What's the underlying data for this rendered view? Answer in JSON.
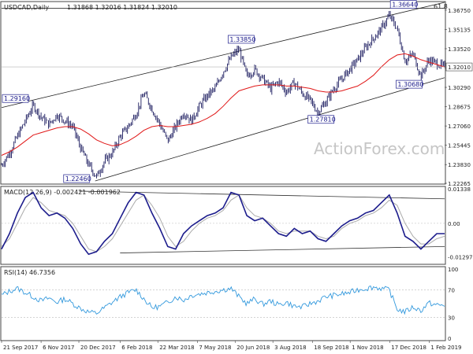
{
  "chart_data": {
    "type": "candlestick",
    "symbol_label": "USDCAD,Daily",
    "ohlc_label": "1.31868 1.32016 1.31824 1.32010",
    "last_price": "1.32010",
    "watermark": "ActionForex.com",
    "top_right_label": "61.8",
    "y_ticks": [
      "1.36750",
      "1.35135",
      "1.33520",
      "1.31905",
      "1.30290",
      "1.28675",
      "1.27060",
      "1.25445",
      "1.23830",
      "1.22265"
    ],
    "x_ticks": [
      "21 Sep 2017",
      "6 Nov 2017",
      "20 Dec 2017",
      "6 Feb 2018",
      "22 Mar 2018",
      "7 May 2018",
      "20 Jun 2018",
      "3 Aug 2018",
      "18 Sep 2018",
      "1 Nov 2018",
      "17 Dec 2018",
      "1 Feb 2019"
    ],
    "ylim": [
      1.22265,
      1.374
    ],
    "price_series": [
      {
        "date": "21 Sep 2017",
        "close": 1.238
      },
      {
        "date": "29 Sep 2017",
        "close": 1.248
      },
      {
        "date": "9 Oct 2017",
        "close": 1.262
      },
      {
        "date": "17 Oct 2017",
        "close": 1.275
      },
      {
        "date": "25 Oct 2017",
        "close": 1.288
      },
      {
        "date": "6 Nov 2017",
        "close": 1.278
      },
      {
        "date": "15 Nov 2017",
        "close": 1.272
      },
      {
        "date": "24 Nov 2017",
        "close": 1.28
      },
      {
        "date": "1 Dec 2017",
        "close": 1.275
      },
      {
        "date": "8 Dec 2017",
        "close": 1.27
      },
      {
        "date": "20 Dec 2017",
        "close": 1.252
      },
      {
        "date": "29 Dec 2017",
        "close": 1.238
      },
      {
        "date": "8 Jan 2018",
        "close": 1.228
      },
      {
        "date": "18 Jan 2018",
        "close": 1.241
      },
      {
        "date": "25 Jan 2018",
        "close": 1.248
      },
      {
        "date": "6 Feb 2018",
        "close": 1.262
      },
      {
        "date": "14 Feb 2018",
        "close": 1.27
      },
      {
        "date": "22 Feb 2018",
        "close": 1.281
      },
      {
        "date": "5 Mar 2018",
        "close": 1.298
      },
      {
        "date": "14 Mar 2018",
        "close": 1.285
      },
      {
        "date": "22 Mar 2018",
        "close": 1.272
      },
      {
        "date": "2 Apr 2018",
        "close": 1.258
      },
      {
        "date": "11 Apr 2018",
        "close": 1.27
      },
      {
        "date": "20 Apr 2018",
        "close": 1.282
      },
      {
        "date": "27 Apr 2018",
        "close": 1.275
      },
      {
        "date": "7 May 2018",
        "close": 1.287
      },
      {
        "date": "17 May 2018",
        "close": 1.296
      },
      {
        "date": "28 May 2018",
        "close": 1.302
      },
      {
        "date": "8 Jun 2018",
        "close": 1.316
      },
      {
        "date": "20 Jun 2018",
        "close": 1.328
      },
      {
        "date": "27 Jun 2018",
        "close": 1.335
      },
      {
        "date": "6 Jul 2018",
        "close": 1.312
      },
      {
        "date": "16 Jul 2018",
        "close": 1.318
      },
      {
        "date": "25 Jul 2018",
        "close": 1.31
      },
      {
        "date": "3 Aug 2018",
        "close": 1.302
      },
      {
        "date": "14 Aug 2018",
        "close": 1.308
      },
      {
        "date": "24 Aug 2018",
        "close": 1.299
      },
      {
        "date": "3 Sep 2018",
        "close": 1.307
      },
      {
        "date": "12 Sep 2018",
        "close": 1.298
      },
      {
        "date": "18 Sep 2018",
        "close": 1.292
      },
      {
        "date": "28 Sep 2018",
        "close": 1.282
      },
      {
        "date": "8 Oct 2018",
        "close": 1.291
      },
      {
        "date": "19 Oct 2018",
        "close": 1.302
      },
      {
        "date": "1 Nov 2018",
        "close": 1.31
      },
      {
        "date": "12 Nov 2018",
        "close": 1.318
      },
      {
        "date": "22 Nov 2018",
        "close": 1.326
      },
      {
        "date": "3 Dec 2018",
        "close": 1.336
      },
      {
        "date": "10 Dec 2018",
        "close": 1.344
      },
      {
        "date": "17 Dec 2018",
        "close": 1.352
      },
      {
        "date": "24 Dec 2018",
        "close": 1.363
      },
      {
        "date": "2 Jan 2019",
        "close": 1.352
      },
      {
        "date": "10 Jan 2019",
        "close": 1.325
      },
      {
        "date": "18 Jan 2019",
        "close": 1.331
      },
      {
        "date": "1 Feb 2019",
        "close": 1.312
      },
      {
        "date": "8 Feb 2019",
        "close": 1.326
      },
      {
        "date": "14 Feb 2019",
        "close": 1.323
      },
      {
        "date": "19 Feb 2019",
        "close": 1.32
      }
    ],
    "ma_series": [
      1.246,
      1.249,
      1.253,
      1.258,
      1.263,
      1.265,
      1.267,
      1.269,
      1.27,
      1.27,
      1.268,
      1.264,
      1.259,
      1.256,
      1.254,
      1.255,
      1.258,
      1.262,
      1.267,
      1.27,
      1.271,
      1.27,
      1.27,
      1.271,
      1.272,
      1.274,
      1.277,
      1.281,
      1.287,
      1.294,
      1.3,
      1.302,
      1.304,
      1.305,
      1.305,
      1.305,
      1.304,
      1.304,
      1.303,
      1.302,
      1.3,
      1.299,
      1.299,
      1.3,
      1.302,
      1.304,
      1.308,
      1.313,
      1.32,
      1.326,
      1.33,
      1.331,
      1.329,
      1.326,
      1.324,
      1.322,
      1.32
    ],
    "annotations": [
      {
        "label": "1.29160",
        "date": "6 Nov 2017",
        "price": 1.2916
      },
      {
        "label": "1.22460",
        "date": "8 Jan 2018",
        "price": 1.2246
      },
      {
        "label": "1.33850",
        "date": "27 Jun 2018",
        "price": 1.3385
      },
      {
        "label": "1.27810",
        "date": "28 Sep 2018",
        "price": 1.2781
      },
      {
        "label": "1.36640",
        "date": "2 Jan 2019",
        "price": 1.3664
      },
      {
        "label": "1.30680",
        "date": "1 Feb 2019",
        "price": 1.3068
      }
    ],
    "channel": {
      "upper": [
        {
          "date": "21 Sep 2017",
          "price": 1.286
        },
        {
          "date": "19 Feb 2019",
          "price": 1.374
        }
      ],
      "lower": [
        {
          "date": "8 Jan 2018",
          "price": 1.2246
        },
        {
          "date": "19 Feb 2019",
          "price": 1.311
        }
      ],
      "horizontal": {
        "price": 1.3664,
        "label": "61.8"
      }
    },
    "macd": {
      "label": "MACD(12,26,9) -0.002421 -0.001962",
      "y_ticks": [
        "0.01338",
        "0.00",
        "-0.012979"
      ],
      "ylim": [
        -0.015,
        0.0134
      ],
      "main": [
        -0.01,
        -0.004,
        0.004,
        0.01,
        0.012,
        0.006,
        0.003,
        0.004,
        0.002,
        -0.002,
        -0.008,
        -0.012,
        -0.011,
        -0.007,
        -0.004,
        0.002,
        0.008,
        0.012,
        0.011,
        0.004,
        -0.002,
        -0.009,
        -0.01,
        -0.004,
        -0.001,
        0.001,
        0.003,
        0.004,
        0.006,
        0.012,
        0.011,
        0.003,
        0.001,
        0.002,
        -0.001,
        -0.004,
        -0.005,
        -0.002,
        -0.004,
        -0.003,
        -0.006,
        -0.007,
        -0.004,
        -0.001,
        0.001,
        0.002,
        0.004,
        0.005,
        0.008,
        0.011,
        0.004,
        -0.005,
        -0.007,
        -0.01,
        -0.007,
        -0.004,
        -0.004
      ],
      "signal": [
        -0.009,
        -0.006,
        0.0,
        0.006,
        0.01,
        0.008,
        0.005,
        0.004,
        0.003,
        0.0,
        -0.005,
        -0.01,
        -0.011,
        -0.009,
        -0.006,
        -0.001,
        0.004,
        0.009,
        0.011,
        0.007,
        0.002,
        -0.005,
        -0.009,
        -0.007,
        -0.003,
        0.0,
        0.002,
        0.003,
        0.005,
        0.009,
        0.011,
        0.006,
        0.003,
        0.002,
        0.0,
        -0.003,
        -0.004,
        -0.003,
        -0.003,
        -0.003,
        -0.005,
        -0.006,
        -0.005,
        -0.002,
        0.0,
        0.001,
        0.003,
        0.004,
        0.006,
        0.009,
        0.007,
        0.0,
        -0.005,
        -0.008,
        -0.008,
        -0.006,
        -0.005
      ],
      "trendlines": [
        {
          "from": {
            "date": "20 Dec 2017",
            "value": 0.0125
          },
          "to": {
            "date": "19 Feb 2019",
            "value": 0.0095
          }
        },
        {
          "from": {
            "date": "6 Feb 2018",
            "value": -0.0115
          },
          "to": {
            "date": "19 Feb 2019",
            "value": -0.009
          }
        }
      ]
    },
    "rsi": {
      "label": "RSI(14) 46.7356",
      "y_ticks": [
        "100",
        "70",
        "30",
        "0"
      ],
      "ylim": [
        0,
        100
      ],
      "levels": [
        70,
        30
      ],
      "values": [
        62,
        68,
        72,
        66,
        60,
        54,
        58,
        52,
        57,
        50,
        43,
        38,
        36,
        44,
        52,
        60,
        66,
        70,
        57,
        44,
        46,
        52,
        60,
        55,
        62,
        64,
        66,
        68,
        70,
        72,
        60,
        50,
        57,
        49,
        54,
        48,
        52,
        46,
        45,
        50,
        54,
        60,
        62,
        64,
        66,
        70,
        72,
        74,
        72,
        70,
        42,
        38,
        45,
        40,
        51,
        48,
        47
      ]
    }
  }
}
